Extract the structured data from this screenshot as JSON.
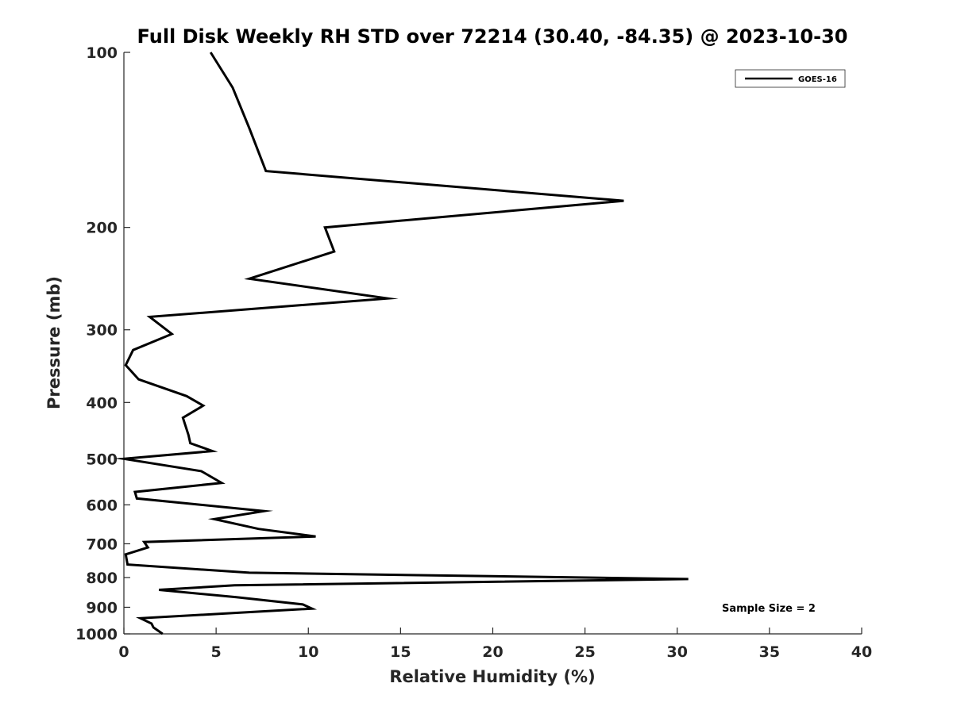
{
  "chart_data": {
    "type": "line",
    "title": "Full Disk Weekly RH STD over 72214 (30.40, -84.35) @ 2023-10-30",
    "xlabel": "Relative Humidity (%)",
    "ylabel": "Pressure (mb)",
    "xlim": [
      0,
      40
    ],
    "ylim": [
      100,
      1000
    ],
    "y_scale": "log",
    "y_reversed": true,
    "x_ticks": [
      0,
      5,
      10,
      15,
      20,
      25,
      30,
      35,
      40
    ],
    "y_ticks": [
      100,
      200,
      300,
      400,
      500,
      600,
      700,
      800,
      900,
      1000
    ],
    "grid": false,
    "legend_position": "top-right",
    "annotation": "Sample Size = 2",
    "series": [
      {
        "name": "GOES-16",
        "color": "#000000",
        "points": [
          [
            4.7,
            100
          ],
          [
            5.9,
            115
          ],
          [
            6.8,
            135
          ],
          [
            7.7,
            160
          ],
          [
            27.1,
            180
          ],
          [
            10.9,
            200
          ],
          [
            11.4,
            220
          ],
          [
            6.8,
            245
          ],
          [
            14.3,
            265
          ],
          [
            1.4,
            285
          ],
          [
            2.6,
            305
          ],
          [
            0.5,
            325
          ],
          [
            0.1,
            345
          ],
          [
            0.8,
            365
          ],
          [
            3.4,
            390
          ],
          [
            4.3,
            405
          ],
          [
            3.2,
            425
          ],
          [
            3.5,
            455
          ],
          [
            3.6,
            470
          ],
          [
            4.8,
            485
          ],
          [
            0.0,
            500
          ],
          [
            4.2,
            525
          ],
          [
            5.3,
            550
          ],
          [
            0.6,
            570
          ],
          [
            0.7,
            585
          ],
          [
            7.6,
            615
          ],
          [
            4.9,
            635
          ],
          [
            7.3,
            660
          ],
          [
            10.4,
            680
          ],
          [
            1.1,
            695
          ],
          [
            1.3,
            710
          ],
          [
            0.1,
            730
          ],
          [
            0.2,
            760
          ],
          [
            6.8,
            785
          ],
          [
            30.6,
            805
          ],
          [
            6.0,
            825
          ],
          [
            1.9,
            840
          ],
          [
            6.1,
            865
          ],
          [
            9.7,
            890
          ],
          [
            10.2,
            905
          ],
          [
            6.1,
            920
          ],
          [
            0.9,
            940
          ],
          [
            1.5,
            960
          ],
          [
            1.6,
            975
          ],
          [
            2.1,
            1000
          ]
        ]
      }
    ]
  }
}
